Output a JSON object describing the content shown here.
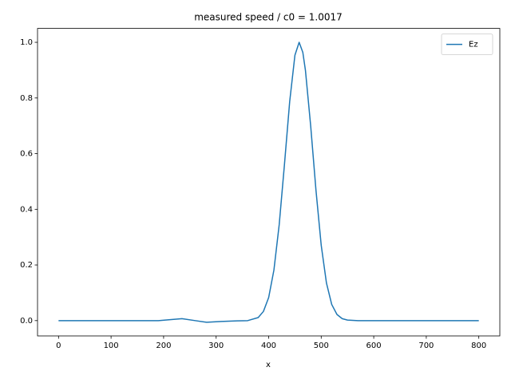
{
  "chart_data": {
    "type": "line",
    "title": "measured speed / c0 = 1.0017",
    "x_label": "x",
    "x": [
      0,
      50,
      100,
      150,
      190,
      210,
      235,
      260,
      282,
      310,
      340,
      360,
      380,
      390,
      400,
      410,
      420,
      430,
      440,
      450,
      458,
      465,
      470,
      480,
      490,
      500,
      510,
      520,
      530,
      540,
      550,
      570,
      600,
      700,
      800
    ],
    "series": [
      {
        "name": "Ez",
        "color": "#1f77b4",
        "values": [
          0,
          0,
          0,
          0,
          0,
          0.003,
          0.007,
          0.0,
          -0.006,
          -0.003,
          -0.001,
          0,
          0.011,
          0.033,
          0.083,
          0.182,
          0.344,
          0.56,
          0.787,
          0.954,
          1.0,
          0.964,
          0.899,
          0.699,
          0.469,
          0.271,
          0.135,
          0.058,
          0.022,
          0.007,
          0.002,
          0,
          0,
          0,
          0
        ]
      }
    ],
    "xlim": [
      -40,
      840
    ],
    "xticks": [
      0,
      100,
      200,
      300,
      400,
      500,
      600,
      700,
      800
    ],
    "ylim": [
      -0.055,
      1.05
    ],
    "yticks": [
      {
        "value": 0,
        "label": "0.0"
      },
      {
        "value": 0.2,
        "label": "0.2"
      },
      {
        "value": 0.4,
        "label": "0.4"
      },
      {
        "value": 0.6,
        "label": "0.6"
      },
      {
        "value": 0.8,
        "label": "0.8"
      },
      {
        "value": 1.0,
        "label": "1.0"
      }
    ],
    "legend": "upper right"
  }
}
